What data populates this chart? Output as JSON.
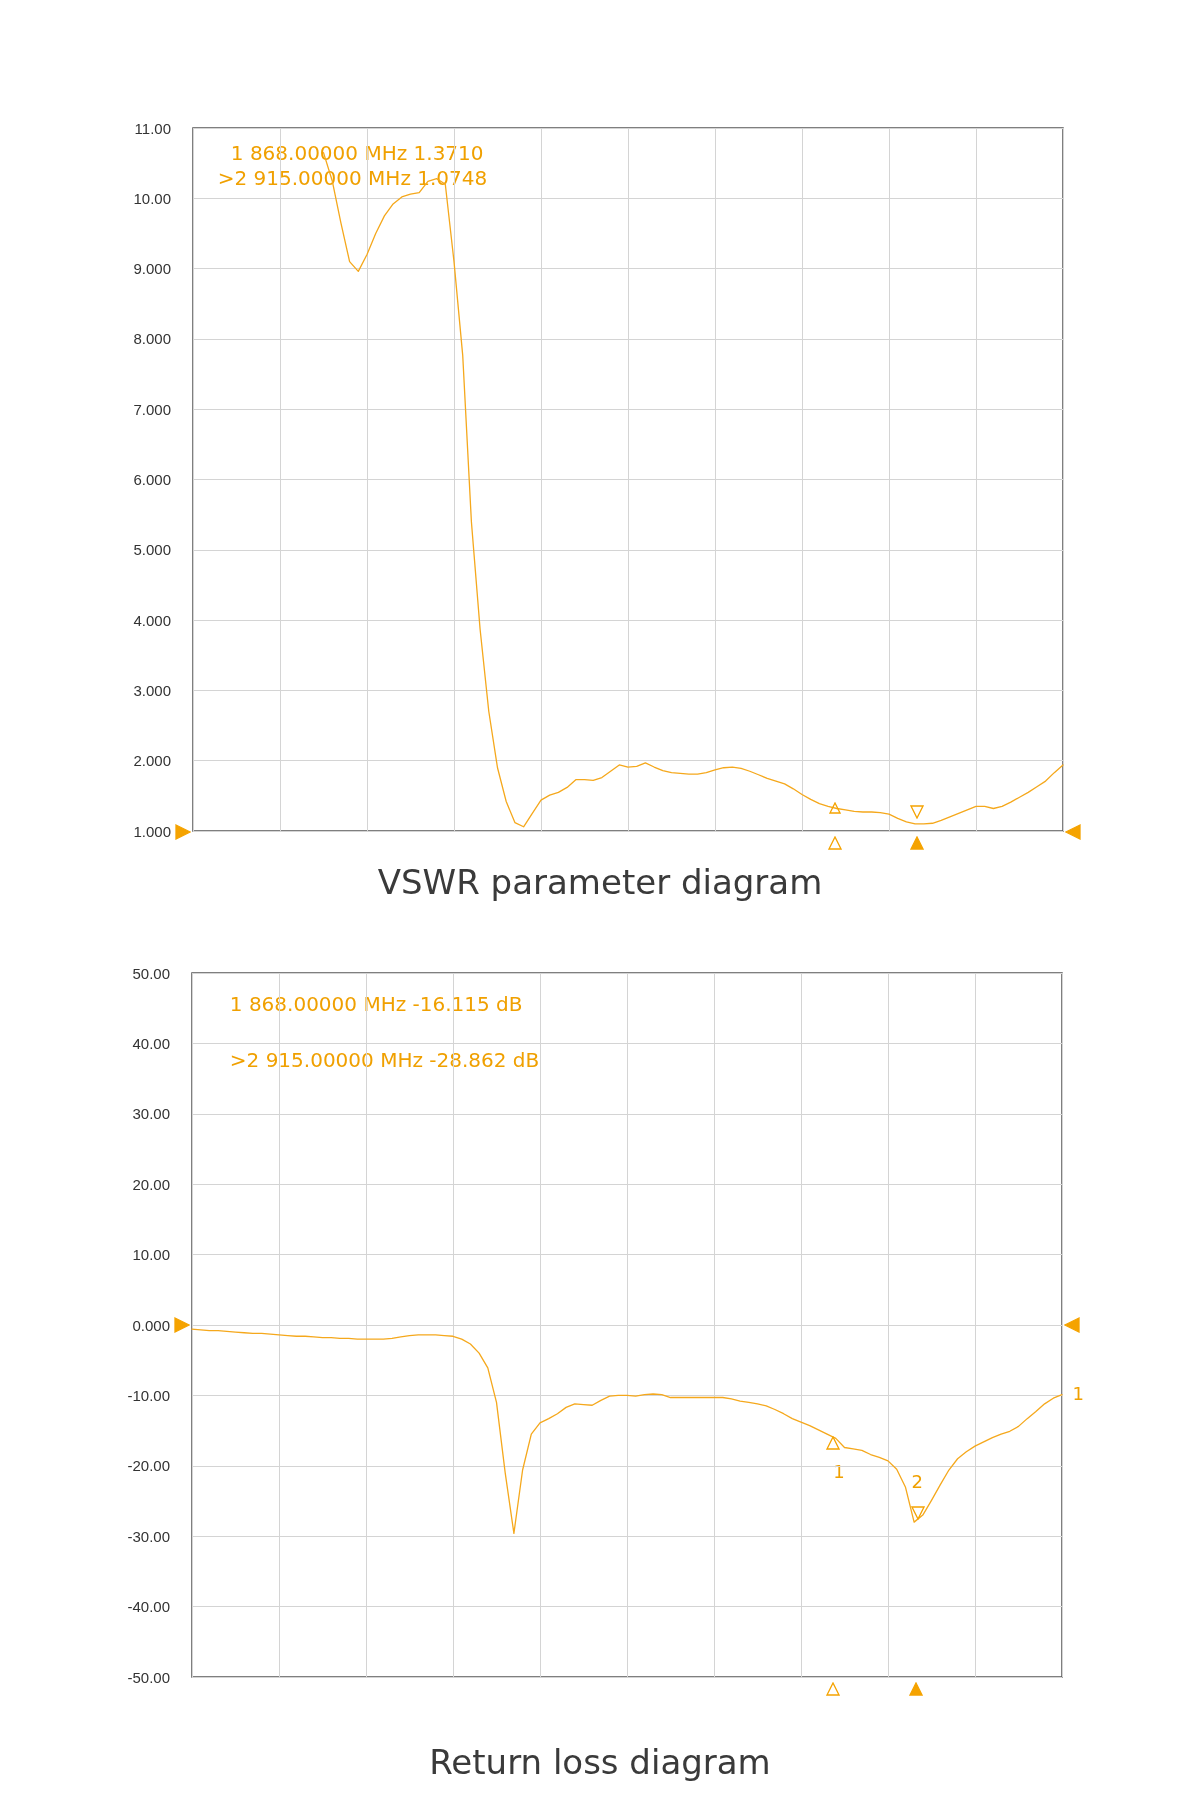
{
  "chart_data": [
    {
      "type": "line",
      "title": "VSWR parameter diagram",
      "categories": [
        null,
        null,
        null,
        null,
        null,
        null,
        null,
        null,
        null,
        null,
        null,
        null,
        null,
        null,
        null,
        null,
        null,
        null,
        null,
        null,
        null,
        null,
        null,
        null,
        null,
        null,
        null,
        null,
        null,
        null,
        null,
        null,
        null,
        null,
        null,
        null,
        null,
        null,
        null,
        null,
        null,
        null,
        null,
        null,
        null,
        null,
        null,
        null,
        null,
        null,
        null,
        null,
        null,
        null,
        null,
        null,
        null,
        null,
        null,
        null,
        null,
        null,
        null,
        null,
        null,
        null,
        null,
        null,
        null,
        null,
        null,
        null,
        null,
        null,
        null,
        null,
        null,
        null,
        null,
        null,
        null,
        null,
        null,
        null,
        null,
        null,
        null,
        null,
        null,
        null,
        null,
        null,
        null,
        null,
        null,
        null,
        null,
        null,
        null,
        null,
        null
      ],
      "series": [
        {
          "color": "#f5a81c",
          "values": [
            null,
            null,
            null,
            null,
            null,
            null,
            null,
            null,
            null,
            null,
            null,
            null,
            null,
            null,
            null,
            10.65,
            10.25,
            9.65,
            9.1,
            8.96,
            9.2,
            9.5,
            9.75,
            9.92,
            10.02,
            10.06,
            10.08,
            10.24,
            10.28,
            10.2,
            9.1,
            7.77,
            5.4,
            3.87,
            2.7,
            1.9,
            1.42,
            1.12,
            1.06,
            1.25,
            1.44,
            1.51,
            1.55,
            1.62,
            1.73,
            1.73,
            1.72,
            1.76,
            1.85,
            1.94,
            1.91,
            1.92,
            1.97,
            1.91,
            1.86,
            1.83,
            1.82,
            1.81,
            1.81,
            1.83,
            1.87,
            1.9,
            1.91,
            1.89,
            1.85,
            1.8,
            1.75,
            1.71,
            1.67,
            1.6,
            1.52,
            1.45,
            1.39,
            1.35,
            1.32,
            1.3,
            1.28,
            1.27,
            1.27,
            1.26,
            1.24,
            1.18,
            1.13,
            1.1,
            1.1,
            1.11,
            1.15,
            1.2,
            1.25,
            1.3,
            1.35,
            1.35,
            1.32,
            1.35,
            1.41,
            1.48,
            1.55,
            1.63,
            1.71,
            1.83,
            1.94
          ]
        }
      ],
      "ylim": [
        1,
        11
      ],
      "yticks": [
        {
          "value": 1,
          "label": "1.000"
        },
        {
          "value": 2,
          "label": "2.000"
        },
        {
          "value": 3,
          "label": "3.000"
        },
        {
          "value": 4,
          "label": "4.000"
        },
        {
          "value": 5,
          "label": "5.000"
        },
        {
          "value": 6,
          "label": "6.000"
        },
        {
          "value": 7,
          "label": "7.000"
        },
        {
          "value": 8,
          "label": "8.000"
        },
        {
          "value": 9,
          "label": "9.000"
        },
        {
          "value": 10,
          "label": "10.00"
        },
        {
          "value": 11,
          "label": "11.00"
        }
      ],
      "annotations": [
        "1 868.00000 MHz 1.3710",
        ">2 915.00000 MHz 1.0748"
      ],
      "grid": true,
      "tick_labels": "y",
      "line_style": "solid"
    },
    {
      "type": "line",
      "title": "Return loss diagram",
      "categories": [
        null,
        null,
        null,
        null,
        null,
        null,
        null,
        null,
        null,
        null,
        null,
        null,
        null,
        null,
        null,
        null,
        null,
        null,
        null,
        null,
        null,
        null,
        null,
        null,
        null,
        null,
        null,
        null,
        null,
        null,
        null,
        null,
        null,
        null,
        null,
        null,
        null,
        null,
        null,
        null,
        null,
        null,
        null,
        null,
        null,
        null,
        null,
        null,
        null,
        null,
        null,
        null,
        null,
        null,
        null,
        null,
        null,
        null,
        null,
        null,
        null,
        null,
        null,
        null,
        null,
        null,
        null,
        null,
        null,
        null,
        null,
        null,
        null,
        null,
        null,
        null,
        null,
        null,
        null,
        null,
        null,
        null,
        null,
        null,
        null,
        null,
        null,
        null,
        null,
        null,
        null,
        null,
        null,
        null,
        null,
        null,
        null,
        null,
        null,
        null,
        null
      ],
      "series": [
        {
          "color": "#f5a81c",
          "values": [
            -0.6,
            -0.7,
            -0.8,
            -0.8,
            -0.9,
            -1.0,
            -1.1,
            -1.2,
            -1.2,
            -1.3,
            -1.4,
            -1.5,
            -1.6,
            -1.6,
            -1.7,
            -1.8,
            -1.8,
            -1.9,
            -1.9,
            -2.0,
            -2.0,
            -2.0,
            -2.0,
            -1.9,
            -1.7,
            -1.5,
            -1.4,
            -1.4,
            -1.4,
            -1.5,
            -1.6,
            -2.0,
            -2.7,
            -4.0,
            -6.1,
            -11,
            -21,
            -29.6,
            -20.6,
            -15.5,
            -13.9,
            -13.3,
            -12.6,
            -11.7,
            -11.2,
            -11.3,
            -11.4,
            -10.7,
            -10.1,
            -10.0,
            -10.0,
            -10.1,
            -9.9,
            -9.8,
            -9.9,
            -10.3,
            -10.3,
            -10.3,
            -10.3,
            -10.3,
            -10.3,
            -10.3,
            -10.5,
            -10.8,
            -11.0,
            -11.2,
            -11.5,
            -12.0,
            -12.6,
            -13.3,
            -13.8,
            -14.3,
            -14.9,
            -15.5,
            -16.1,
            -17.4,
            -17.6,
            -17.8,
            -18.4,
            -18.8,
            -19.3,
            -20.5,
            -23.0,
            -28.0,
            -27.0,
            -24.9,
            -22.7,
            -20.6,
            -19.0,
            -18.0,
            -17.2,
            -16.6,
            -16.0,
            -15.5,
            -15.1,
            -14.4,
            -13.3,
            -12.3,
            -11.2,
            -10.4,
            -9.9
          ]
        }
      ],
      "ylim": [
        -50,
        50
      ],
      "yticks": [
        {
          "value": -50,
          "label": "-50.00"
        },
        {
          "value": -40,
          "label": "-40.00"
        },
        {
          "value": -30,
          "label": "-30.00"
        },
        {
          "value": -20,
          "label": "-20.00"
        },
        {
          "value": -10,
          "label": "-10.00"
        },
        {
          "value": 0,
          "label": "0.000"
        },
        {
          "value": 10,
          "label": "10.00"
        },
        {
          "value": 20,
          "label": "20.00"
        },
        {
          "value": 30,
          "label": "30.00"
        },
        {
          "value": 40,
          "label": "40.00"
        },
        {
          "value": 50,
          "label": "50.00"
        }
      ],
      "annotations": [
        "1 868.00000 MHz -16.115 dB",
        ">2 915.00000 MHz -28.862 dB",
        "1",
        "2",
        "1"
      ],
      "grid": true,
      "tick_labels": "y",
      "line_style": "solid"
    }
  ]
}
